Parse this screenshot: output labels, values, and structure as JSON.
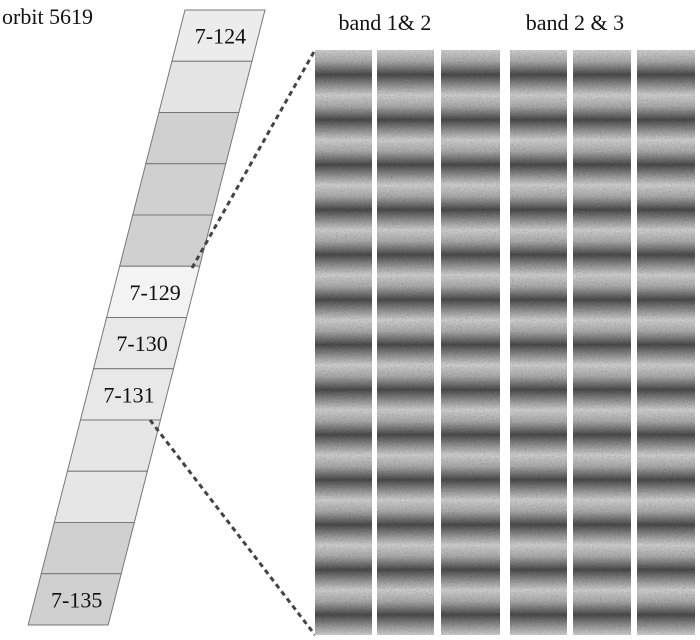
{
  "title": "orbit 5619",
  "tile_labels": [
    "7-124",
    "7-129",
    "7-130",
    "7-131",
    "7-135"
  ],
  "panel_headers": [
    "band 1& 2",
    "band 2 & 3"
  ]
}
